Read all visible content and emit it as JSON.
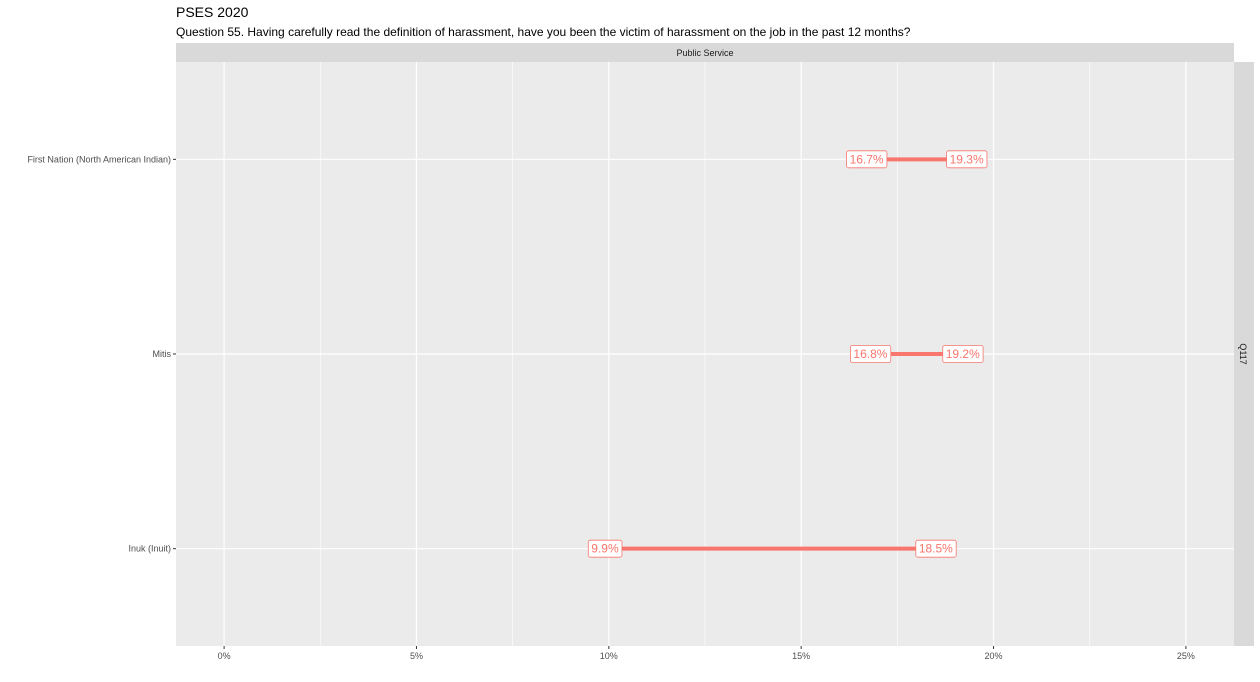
{
  "header": {
    "title": "PSES 2020",
    "subtitle": "Question 55. Having carefully read the definition of harassment, have you been the victim of harassment on the job in the past 12 months?"
  },
  "facet": {
    "top_strip": "Public Service",
    "right_strip": "Q117"
  },
  "colors": {
    "panel_bg": "#ebebeb",
    "strip_bg": "#d9d9d9",
    "grid": "#ffffff",
    "series": "#f8766d"
  },
  "chart_data": {
    "type": "dumbbell",
    "title": "PSES 2020",
    "subtitle": "Question 55. Having carefully read the definition of harassment, have you been the victim of harassment on the job in the past 12 months?",
    "xlabel": "",
    "ylabel": "",
    "xlim": [
      -1.25,
      26.25
    ],
    "x_ticks": [
      0,
      5,
      10,
      15,
      20,
      25
    ],
    "x_tick_labels": [
      "0%",
      "5%",
      "10%",
      "15%",
      "20%",
      "25%"
    ],
    "grid": true,
    "categories": [
      "First Nation (North American Indian)",
      "Mitis",
      "Inuk (Inuit)"
    ],
    "rows": [
      {
        "category": "First Nation (North American Indian)",
        "low": 16.7,
        "high": 19.3,
        "low_label": "16.7%",
        "high_label": "19.3%"
      },
      {
        "category": "Mitis",
        "low": 16.8,
        "high": 19.2,
        "low_label": "16.8%",
        "high_label": "19.2%"
      },
      {
        "category": "Inuk (Inuit)",
        "low": 9.9,
        "high": 18.5,
        "low_label": "9.9%",
        "high_label": "18.5%"
      }
    ]
  }
}
